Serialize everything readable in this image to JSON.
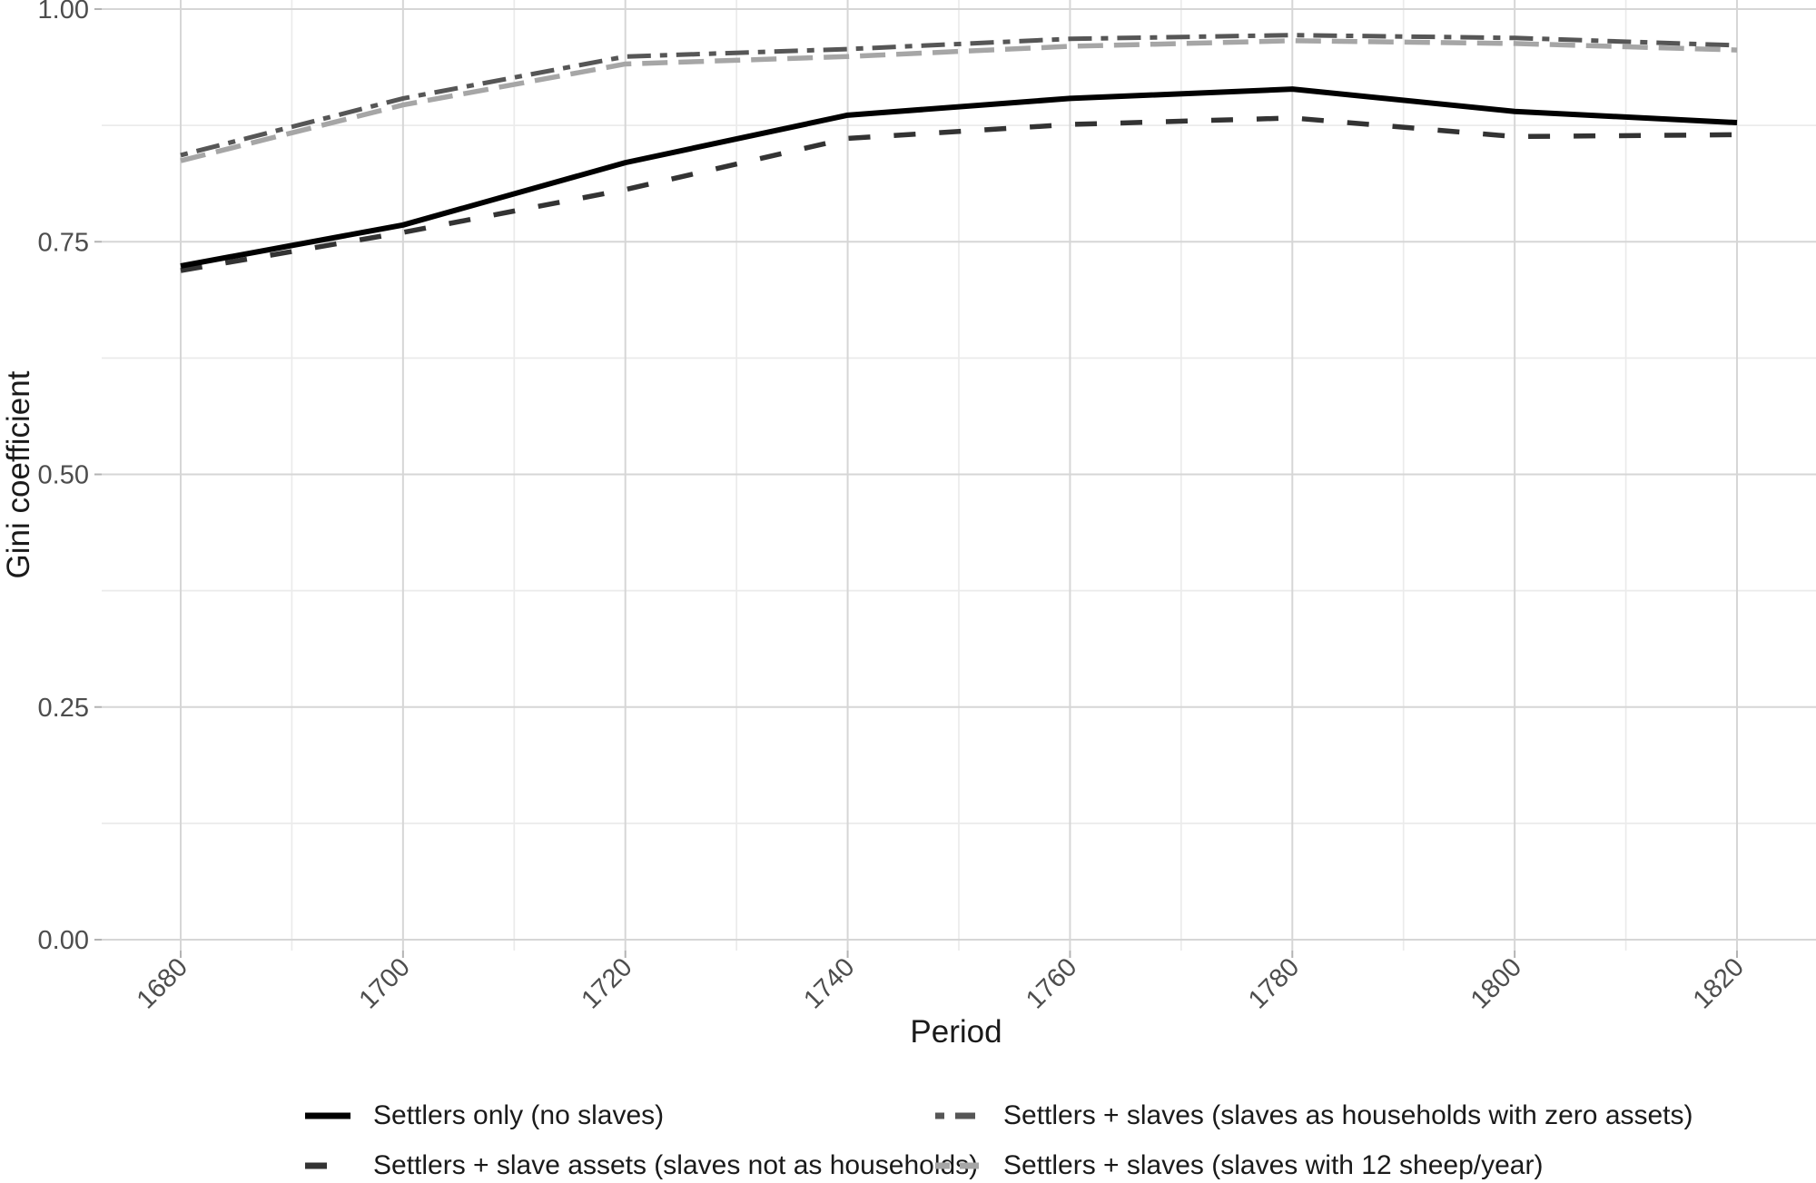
{
  "chart_data": {
    "type": "line",
    "title": "",
    "xlabel": "Period",
    "ylabel": "Gini coefficient",
    "x": [
      1680,
      1700,
      1720,
      1740,
      1760,
      1780,
      1800,
      1820
    ],
    "series": [
      {
        "name": "Settlers only (no slaves)",
        "key": "settlers_only",
        "color": "#000000",
        "linetype": "solid",
        "values": [
          0.724,
          0.768,
          0.835,
          0.886,
          0.904,
          0.914,
          0.89,
          0.878
        ]
      },
      {
        "name": "Settlers + slave assets (slaves not as households)",
        "key": "slave_assets",
        "color": "#333333",
        "linetype": "dashed",
        "values": [
          0.719,
          0.76,
          0.806,
          0.861,
          0.876,
          0.883,
          0.863,
          0.865
        ]
      },
      {
        "name": "Settlers + slaves (slaves as households with zero assets)",
        "key": "zero_assets",
        "color": "#565656",
        "linetype": "twodash",
        "values": [
          0.843,
          0.904,
          0.949,
          0.957,
          0.968,
          0.972,
          0.969,
          0.961
        ]
      },
      {
        "name": "Settlers + slaves (slaves with 12 sheep/year)",
        "key": "sheep_12",
        "color": "#a6a6a6",
        "linetype": "longdash",
        "values": [
          0.837,
          0.897,
          0.941,
          0.949,
          0.96,
          0.966,
          0.963,
          0.956
        ]
      }
    ],
    "xlim": [
      1673,
      1827
    ],
    "ylim": [
      0.0,
      1.0
    ],
    "grid": "major+minor",
    "legend_position": "bottom"
  },
  "axes": {
    "x_tick_labels": [
      "1680",
      "1700",
      "1720",
      "1740",
      "1760",
      "1780",
      "1800",
      "1820"
    ],
    "x_minor_ticks": [
      1690,
      1710,
      1730,
      1750,
      1770,
      1790,
      1810
    ],
    "y_ticks": [
      {
        "v": 1.0,
        "label": "1.00"
      },
      {
        "v": 0.75,
        "label": "0.75"
      },
      {
        "v": 0.5,
        "label": "0.50"
      },
      {
        "v": 0.25,
        "label": "0.25"
      },
      {
        "v": 0.0,
        "label": "0.00"
      }
    ],
    "y_minor_ticks": [
      0.875,
      0.625,
      0.375,
      0.125
    ]
  },
  "colors": {
    "background": "#ffffff",
    "grid_major": "#d6d6d6",
    "grid_minor": "#ebebeb",
    "tick_mark": "#b3b3b3",
    "tick_label": "#4d4d4d",
    "axis_title": "#1a1a1a",
    "legend_text": "#1a1a1a"
  }
}
